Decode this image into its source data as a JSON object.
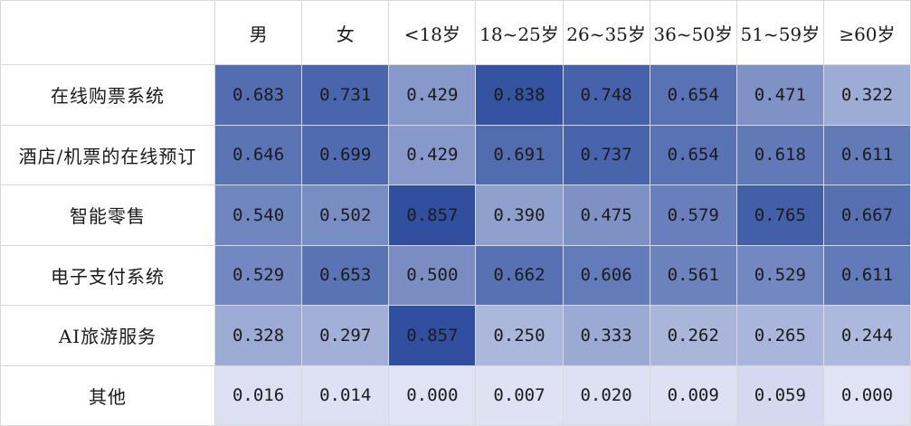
{
  "chart_data": {
    "type": "heatmap",
    "columns": [
      "男",
      "女",
      "<18岁",
      "18~25岁",
      "26~35岁",
      "36~50岁",
      "51~59岁",
      "≥60岁"
    ],
    "rows": [
      {
        "label": "在线购票系统",
        "values": [
          "0.683",
          "0.731",
          "0.429",
          "0.838",
          "0.748",
          "0.654",
          "0.471",
          "0.322"
        ]
      },
      {
        "label": "酒店/机票的在线预订",
        "values": [
          "0.646",
          "0.699",
          "0.429",
          "0.691",
          "0.737",
          "0.654",
          "0.618",
          "0.611"
        ]
      },
      {
        "label": "智能零售",
        "values": [
          "0.540",
          "0.502",
          "0.857",
          "0.390",
          "0.475",
          "0.579",
          "0.765",
          "0.667"
        ]
      },
      {
        "label": "电子支付系统",
        "values": [
          "0.529",
          "0.653",
          "0.500",
          "0.662",
          "0.606",
          "0.561",
          "0.529",
          "0.611"
        ]
      },
      {
        "label": "AI旅游服务",
        "values": [
          "0.328",
          "0.297",
          "0.857",
          "0.250",
          "0.333",
          "0.262",
          "0.265",
          "0.244"
        ]
      },
      {
        "label": "其他",
        "values": [
          "0.016",
          "0.014",
          "0.000",
          "0.007",
          "0.020",
          "0.009",
          "0.059",
          "0.000"
        ]
      }
    ],
    "color_scale": {
      "low": "#dfe3f4",
      "high": "#2f4f9f",
      "min": 0,
      "max": 0.86
    }
  }
}
